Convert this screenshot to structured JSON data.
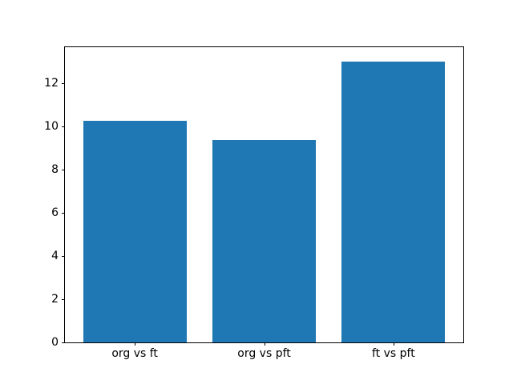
{
  "figure": {
    "background": "#ffffff",
    "title": ""
  },
  "chart_data": {
    "type": "bar",
    "categories": [
      "org vs ft",
      "org vs pft",
      "ft vs pft"
    ],
    "values": [
      10.25,
      9.35,
      13.0
    ],
    "title": "",
    "xlabel": "",
    "ylabel": "",
    "yticks": [
      0,
      2,
      4,
      6,
      8,
      10,
      12
    ],
    "ylim": [
      0,
      13.65
    ],
    "xlim": [
      -0.54,
      2.54
    ],
    "bar_width": 0.8,
    "bar_color": "#1f77b4",
    "spine_color": "#000000",
    "tick_color": "#000000",
    "grid": false,
    "legend": null
  }
}
